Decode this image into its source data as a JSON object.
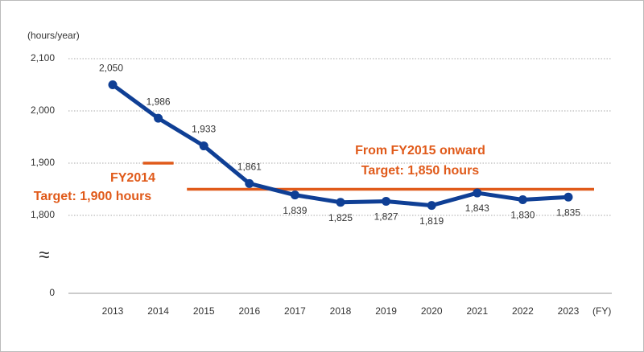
{
  "chart_data": {
    "type": "line",
    "y_unit_label": "(hours/year)",
    "x_unit_label": "(FY)",
    "categories": [
      "2013",
      "2014",
      "2015",
      "2016",
      "2017",
      "2018",
      "2019",
      "2020",
      "2021",
      "2022",
      "2023"
    ],
    "series": [
      {
        "color": "#0f3f95",
        "values": [
          2050,
          1986,
          1933,
          1861,
          1839,
          1825,
          1827,
          1819,
          1843,
          1830,
          1835
        ],
        "value_labels": [
          "2,050",
          "1,986",
          "1,933",
          "1,861",
          "1,839",
          "1,825",
          "1,827",
          "1,819",
          "1,843",
          "1,830",
          "1,835"
        ]
      }
    ],
    "ylim": [
      0,
      2100
    ],
    "yticks": [
      {
        "value": 0,
        "label": "0"
      },
      {
        "value": 1800,
        "label": "1,800"
      },
      {
        "value": 1900,
        "label": "1,900"
      },
      {
        "value": 2000,
        "label": "2,000"
      },
      {
        "value": 2100,
        "label": "2,100"
      }
    ],
    "axis_break": {
      "from": 0,
      "to": 1800,
      "symbol": "≈"
    },
    "grid": true,
    "target_lines": [
      {
        "value": 1900,
        "start": "2014",
        "end": "2014",
        "color": "#e05a1a",
        "label_lines": [
          "FY2014",
          "Target: 1,900 hours"
        ]
      },
      {
        "value": 1850,
        "start": "2015",
        "end": "2023",
        "color": "#e05a1a",
        "label_lines": [
          "From FY2015 onward",
          "Target: 1,850 hours"
        ]
      }
    ]
  }
}
